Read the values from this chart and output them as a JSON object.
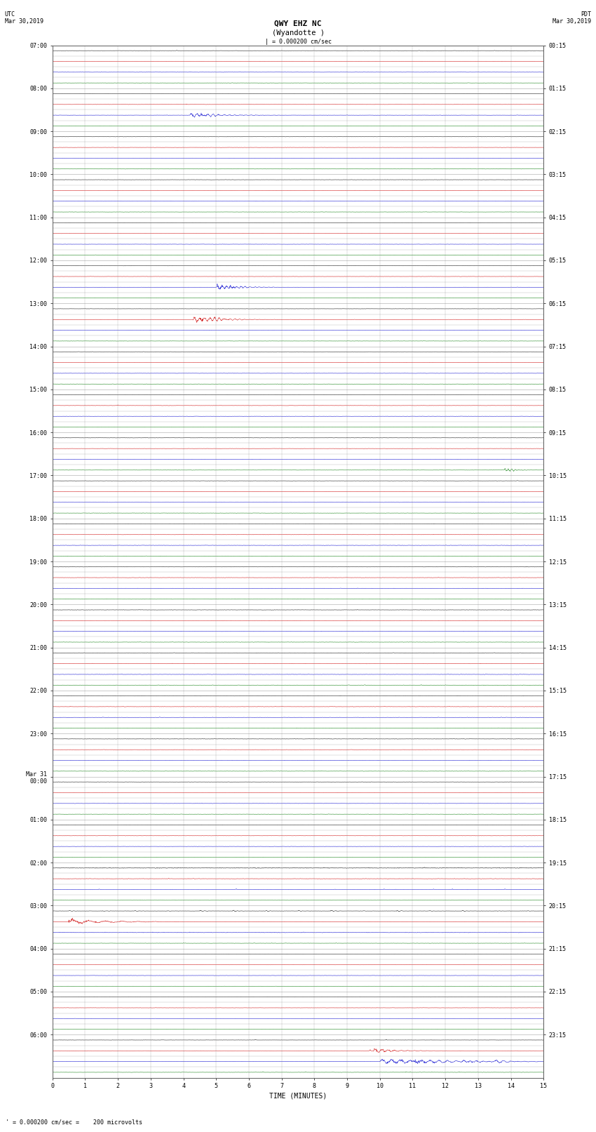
{
  "title_line1": "QWY EHZ NC",
  "title_line2": "(Wyandotte )",
  "scale_label": "| = 0.000200 cm/sec",
  "utc_label": "UTC\nMar 30,2019",
  "pdt_label": "PDT\nMar 30,2019",
  "footer_label": "' = 0.000200 cm/sec =    200 microvolts",
  "xlabel": "TIME (MINUTES)",
  "left_times": [
    "07:00",
    "",
    "",
    "",
    "08:00",
    "",
    "",
    "",
    "09:00",
    "",
    "",
    "",
    "10:00",
    "",
    "",
    "",
    "11:00",
    "",
    "",
    "",
    "12:00",
    "",
    "",
    "",
    "13:00",
    "",
    "",
    "",
    "14:00",
    "",
    "",
    "",
    "15:00",
    "",
    "",
    "",
    "16:00",
    "",
    "",
    "",
    "17:00",
    "",
    "",
    "",
    "18:00",
    "",
    "",
    "",
    "19:00",
    "",
    "",
    "",
    "20:00",
    "",
    "",
    "",
    "21:00",
    "",
    "",
    "",
    "22:00",
    "",
    "",
    "",
    "23:00",
    "",
    "",
    "",
    "Mar 31\n00:00",
    "",
    "",
    "",
    "01:00",
    "",
    "",
    "",
    "02:00",
    "",
    "",
    "",
    "03:00",
    "",
    "",
    "",
    "04:00",
    "",
    "",
    "",
    "05:00",
    "",
    "",
    "",
    "06:00",
    "",
    "",
    ""
  ],
  "right_times": [
    "00:15",
    "",
    "",
    "",
    "01:15",
    "",
    "",
    "",
    "02:15",
    "",
    "",
    "",
    "03:15",
    "",
    "",
    "",
    "04:15",
    "",
    "",
    "",
    "05:15",
    "",
    "",
    "",
    "06:15",
    "",
    "",
    "",
    "07:15",
    "",
    "",
    "",
    "08:15",
    "",
    "",
    "",
    "09:15",
    "",
    "",
    "",
    "10:15",
    "",
    "",
    "",
    "11:15",
    "",
    "",
    "",
    "12:15",
    "",
    "",
    "",
    "13:15",
    "",
    "",
    "",
    "14:15",
    "",
    "",
    "",
    "15:15",
    "",
    "",
    "",
    "16:15",
    "",
    "",
    "",
    "17:15",
    "",
    "",
    "",
    "18:15",
    "",
    "",
    "",
    "19:15",
    "",
    "",
    "",
    "20:15",
    "",
    "",
    "",
    "21:15",
    "",
    "",
    "",
    "22:15",
    "",
    "",
    "",
    "23:15",
    "",
    "",
    ""
  ],
  "n_rows": 96,
  "xmin": 0,
  "xmax": 15,
  "background_color": "#ffffff",
  "grid_color": "#888888",
  "trace_colors_cycle": [
    "#000000",
    "#cc0000",
    "#0000cc",
    "#007700"
  ],
  "title_fontsize": 8,
  "label_fontsize": 7,
  "tick_fontsize": 6
}
